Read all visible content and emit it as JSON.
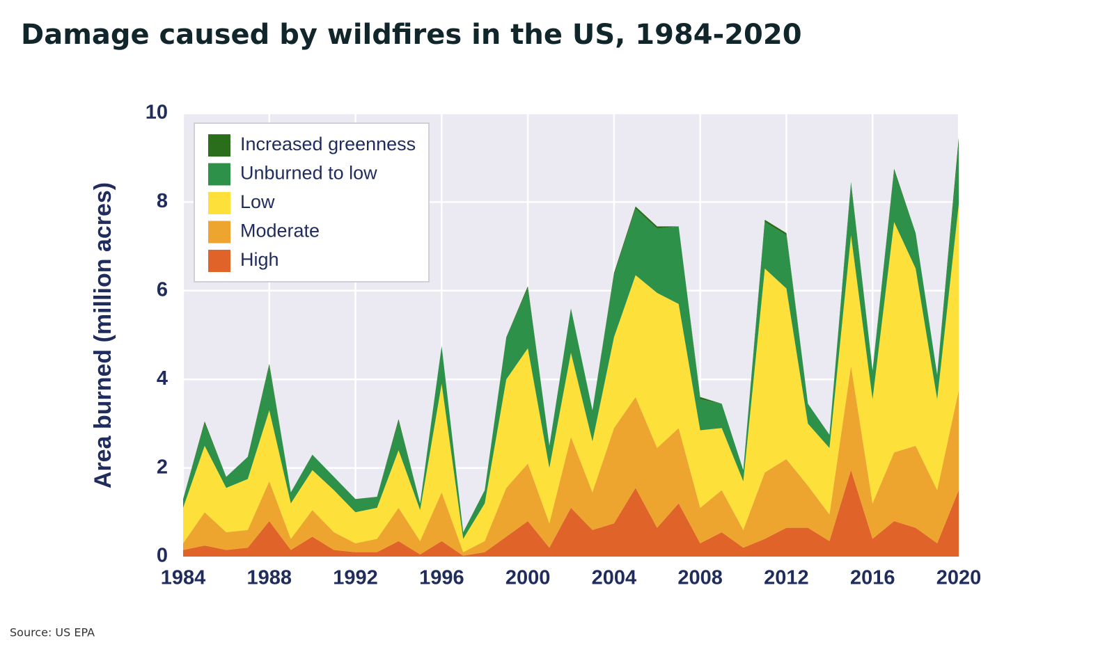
{
  "chart_data": {
    "type": "stacked_area",
    "title": "Damage caused by wildfires in the US, 1984-2020",
    "ylabel": "Area burned (million acres)",
    "source": "Source: US EPA",
    "x": [
      1984,
      1985,
      1986,
      1987,
      1988,
      1989,
      1990,
      1991,
      1992,
      1993,
      1994,
      1995,
      1996,
      1997,
      1998,
      1999,
      2000,
      2001,
      2002,
      2003,
      2004,
      2005,
      2006,
      2007,
      2008,
      2009,
      2010,
      2011,
      2012,
      2013,
      2014,
      2015,
      2016,
      2017,
      2018,
      2019,
      2020
    ],
    "xlim": [
      1984,
      2020
    ],
    "xticks": [
      1984,
      1988,
      1992,
      1996,
      2000,
      2004,
      2008,
      2012,
      2016,
      2020
    ],
    "ylim": [
      0,
      10
    ],
    "yticks": [
      0,
      2,
      4,
      6,
      8,
      10
    ],
    "grid": true,
    "legend": "upper left",
    "series": [
      {
        "name": "Increased greenness",
        "color": "#2a6e1c",
        "values": [
          0,
          0.05,
          0,
          0,
          0.05,
          0,
          0,
          0,
          0,
          0,
          0.05,
          0,
          0,
          0,
          0,
          0,
          0.05,
          0,
          0,
          0,
          0.05,
          0.05,
          0.05,
          0,
          0.05,
          0,
          0,
          0.05,
          0.05,
          0,
          0,
          0.05,
          0,
          0.05,
          0,
          0,
          0.15
        ]
      },
      {
        "name": "Unburned to low",
        "color": "#2e914a",
        "values": [
          0.2,
          0.5,
          0.25,
          0.5,
          1.0,
          0.25,
          0.35,
          0.3,
          0.3,
          0.25,
          0.65,
          0.15,
          0.85,
          0.15,
          0.3,
          0.95,
          1.35,
          0.5,
          1.0,
          0.7,
          1.4,
          1.5,
          1.45,
          1.75,
          0.7,
          0.55,
          0.25,
          1.05,
          1.2,
          0.45,
          0.3,
          1.15,
          0.65,
          1.15,
          0.8,
          0.55,
          1.35
        ]
      },
      {
        "name": "Low",
        "color": "#fde03a",
        "values": [
          0.8,
          1.5,
          1.0,
          1.15,
          1.6,
          0.8,
          0.9,
          0.95,
          0.7,
          0.7,
          1.3,
          0.7,
          2.45,
          0.3,
          0.85,
          2.45,
          2.6,
          1.25,
          1.9,
          1.15,
          2.05,
          2.75,
          3.5,
          2.8,
          1.75,
          1.4,
          1.1,
          4.6,
          3.85,
          1.4,
          1.5,
          2.95,
          2.35,
          5.2,
          4.0,
          2.05,
          4.2
        ]
      },
      {
        "name": "Moderate",
        "color": "#eea52f",
        "values": [
          0.15,
          0.75,
          0.4,
          0.4,
          0.9,
          0.25,
          0.6,
          0.4,
          0.2,
          0.3,
          0.75,
          0.3,
          1.1,
          0.08,
          0.25,
          1.1,
          1.3,
          0.55,
          1.6,
          0.85,
          2.15,
          2.05,
          1.8,
          1.7,
          0.8,
          0.95,
          0.4,
          1.5,
          1.55,
          0.95,
          0.6,
          2.35,
          0.8,
          1.55,
          1.85,
          1.2,
          2.25
        ]
      },
      {
        "name": "High",
        "color": "#e0642a",
        "values": [
          0.15,
          0.25,
          0.15,
          0.2,
          0.8,
          0.15,
          0.45,
          0.15,
          0.1,
          0.1,
          0.35,
          0.05,
          0.35,
          0.02,
          0.1,
          0.45,
          0.8,
          0.2,
          1.1,
          0.6,
          0.75,
          1.55,
          0.65,
          1.2,
          0.3,
          0.55,
          0.2,
          0.4,
          0.65,
          0.65,
          0.35,
          1.95,
          0.4,
          0.8,
          0.65,
          0.3,
          1.5
        ]
      }
    ]
  }
}
